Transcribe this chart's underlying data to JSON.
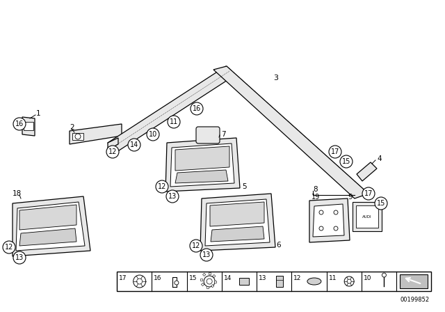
{
  "bg_color": "#ffffff",
  "figure_size": [
    6.4,
    4.48
  ],
  "dpi": 100,
  "footer_text": "00199852",
  "lc": "#000000",
  "fc_strip": "#e8e8e8",
  "fc_white": "#ffffff",
  "label_r": 9
}
